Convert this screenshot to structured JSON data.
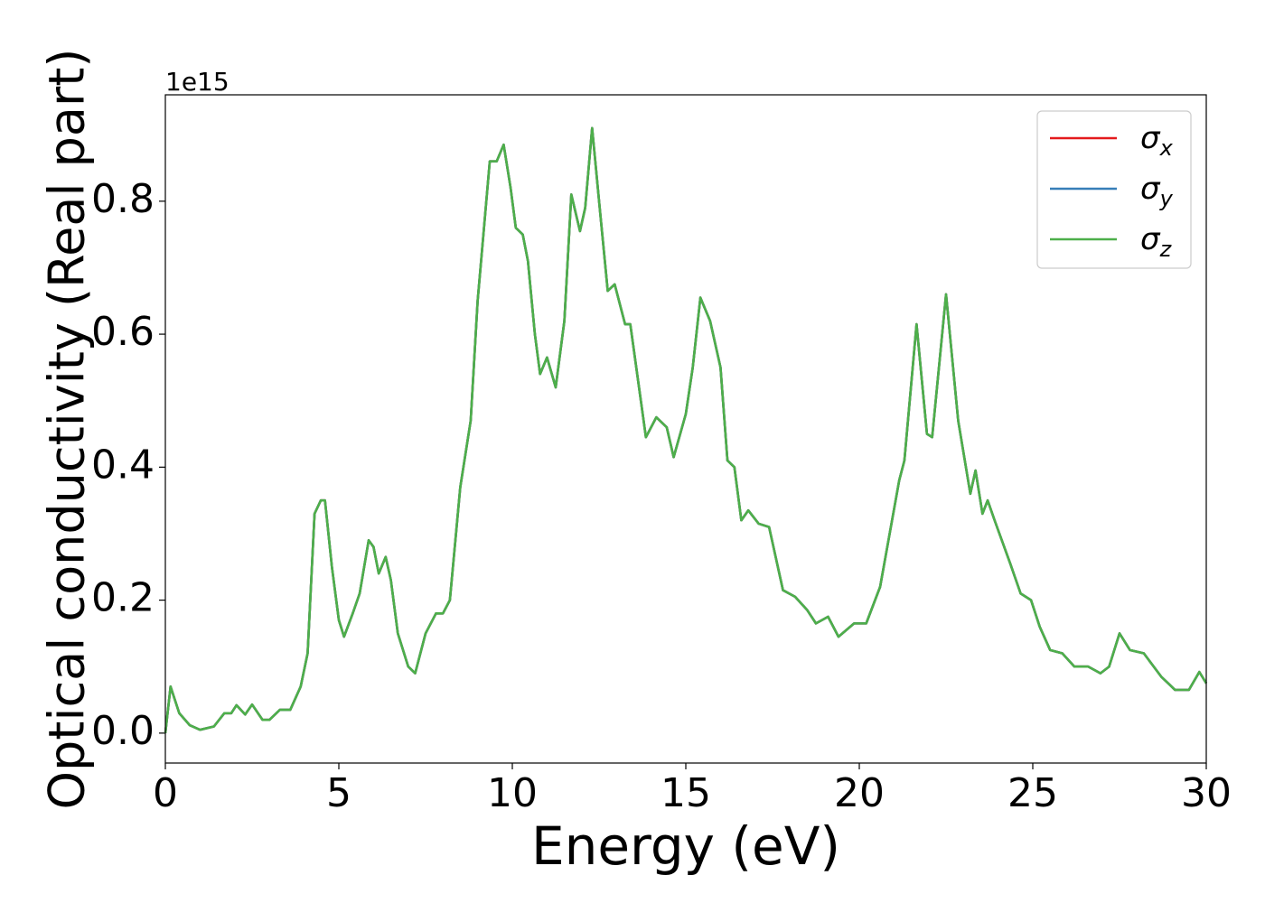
{
  "chart_data": {
    "type": "line",
    "xlabel": "Energy (eV)",
    "ylabel": "Optical conductivity (Real part)",
    "offset_label": "1e15",
    "xlim": [
      0,
      30
    ],
    "ylim": [
      -0.045,
      0.96
    ],
    "xticks": [
      0,
      5,
      10,
      15,
      20,
      25,
      30
    ],
    "yticks": [
      {
        "value": 0,
        "label": "0.0"
      },
      0.2,
      0.4,
      0.6,
      0.8
    ],
    "legend": "upper right",
    "x": [
      0,
      0.15,
      0.4,
      0.7,
      1.0,
      1.4,
      1.7,
      1.9,
      2.05,
      2.3,
      2.5,
      2.8,
      3.0,
      3.3,
      3.6,
      3.9,
      4.1,
      4.3,
      4.48,
      4.6,
      4.8,
      5.0,
      5.15,
      5.4,
      5.6,
      5.86,
      6.0,
      6.15,
      6.35,
      6.5,
      6.7,
      7.0,
      7.2,
      7.5,
      7.8,
      8.0,
      8.2,
      8.5,
      8.8,
      9.0,
      9.35,
      9.55,
      9.75,
      9.95,
      10.1,
      10.3,
      10.45,
      10.65,
      10.8,
      11.0,
      11.25,
      11.5,
      11.7,
      11.95,
      12.1,
      12.3,
      12.5,
      12.75,
      12.95,
      13.25,
      13.4,
      13.85,
      14.15,
      14.45,
      14.65,
      15.0,
      15.2,
      15.42,
      15.7,
      16.0,
      16.2,
      16.4,
      16.6,
      16.8,
      17.1,
      17.4,
      17.8,
      18.15,
      18.5,
      18.75,
      19.1,
      19.4,
      19.85,
      20.2,
      20.6,
      21.15,
      21.3,
      21.65,
      21.95,
      22.1,
      22.5,
      22.85,
      23.2,
      23.35,
      23.55,
      23.7,
      23.9,
      24.35,
      24.65,
      24.95,
      25.2,
      25.5,
      25.85,
      26.2,
      26.6,
      26.95,
      27.2,
      27.5,
      27.8,
      28.2,
      28.7,
      29.1,
      29.5,
      29.8,
      30
    ],
    "series": [
      {
        "name": "σx",
        "color": "#e41a1c",
        "values": [
          0,
          0.07,
          0.03,
          0.012,
          0.005,
          0.01,
          0.03,
          0.03,
          0.042,
          0.028,
          0.043,
          0.02,
          0.02,
          0.035,
          0.035,
          0.07,
          0.12,
          0.33,
          0.35,
          0.35,
          0.25,
          0.17,
          0.145,
          0.18,
          0.21,
          0.29,
          0.28,
          0.24,
          0.265,
          0.23,
          0.15,
          0.1,
          0.09,
          0.15,
          0.18,
          0.18,
          0.2,
          0.37,
          0.47,
          0.65,
          0.86,
          0.86,
          0.885,
          0.82,
          0.76,
          0.75,
          0.71,
          0.6,
          0.54,
          0.565,
          0.52,
          0.62,
          0.81,
          0.755,
          0.79,
          0.91,
          0.8,
          0.665,
          0.675,
          0.615,
          0.615,
          0.445,
          0.475,
          0.46,
          0.415,
          0.48,
          0.55,
          0.655,
          0.62,
          0.55,
          0.41,
          0.4,
          0.32,
          0.335,
          0.315,
          0.31,
          0.215,
          0.205,
          0.185,
          0.165,
          0.175,
          0.145,
          0.165,
          0.165,
          0.22,
          0.38,
          0.41,
          0.615,
          0.45,
          0.445,
          0.66,
          0.47,
          0.36,
          0.395,
          0.33,
          0.35,
          0.32,
          0.255,
          0.21,
          0.2,
          0.16,
          0.125,
          0.12,
          0.1,
          0.1,
          0.09,
          0.1,
          0.15,
          0.125,
          0.12,
          0.085,
          0.065,
          0.065,
          0.092,
          0.075
        ]
      },
      {
        "name": "σy",
        "color": "#377eb8",
        "values": [
          0,
          0.07,
          0.03,
          0.012,
          0.005,
          0.01,
          0.03,
          0.03,
          0.042,
          0.028,
          0.043,
          0.02,
          0.02,
          0.035,
          0.035,
          0.07,
          0.12,
          0.33,
          0.35,
          0.35,
          0.25,
          0.17,
          0.145,
          0.18,
          0.21,
          0.29,
          0.28,
          0.24,
          0.265,
          0.23,
          0.15,
          0.1,
          0.09,
          0.15,
          0.18,
          0.18,
          0.2,
          0.37,
          0.47,
          0.65,
          0.86,
          0.86,
          0.885,
          0.82,
          0.76,
          0.75,
          0.71,
          0.6,
          0.54,
          0.565,
          0.52,
          0.62,
          0.81,
          0.755,
          0.79,
          0.91,
          0.8,
          0.665,
          0.675,
          0.615,
          0.615,
          0.445,
          0.475,
          0.46,
          0.415,
          0.48,
          0.55,
          0.655,
          0.62,
          0.55,
          0.41,
          0.4,
          0.32,
          0.335,
          0.315,
          0.31,
          0.215,
          0.205,
          0.185,
          0.165,
          0.175,
          0.145,
          0.165,
          0.165,
          0.22,
          0.38,
          0.41,
          0.615,
          0.45,
          0.445,
          0.66,
          0.47,
          0.36,
          0.395,
          0.33,
          0.35,
          0.32,
          0.255,
          0.21,
          0.2,
          0.16,
          0.125,
          0.12,
          0.1,
          0.1,
          0.09,
          0.1,
          0.15,
          0.125,
          0.12,
          0.085,
          0.065,
          0.065,
          0.092,
          0.075
        ]
      },
      {
        "name": "σz",
        "color": "#4daf4a",
        "values": [
          0,
          0.07,
          0.03,
          0.012,
          0.005,
          0.01,
          0.03,
          0.03,
          0.042,
          0.028,
          0.043,
          0.02,
          0.02,
          0.035,
          0.035,
          0.07,
          0.12,
          0.33,
          0.35,
          0.35,
          0.25,
          0.17,
          0.145,
          0.18,
          0.21,
          0.29,
          0.28,
          0.24,
          0.265,
          0.23,
          0.15,
          0.1,
          0.09,
          0.15,
          0.18,
          0.18,
          0.2,
          0.37,
          0.47,
          0.65,
          0.86,
          0.86,
          0.885,
          0.82,
          0.76,
          0.75,
          0.71,
          0.6,
          0.54,
          0.565,
          0.52,
          0.62,
          0.81,
          0.755,
          0.79,
          0.91,
          0.8,
          0.665,
          0.675,
          0.615,
          0.615,
          0.445,
          0.475,
          0.46,
          0.415,
          0.48,
          0.55,
          0.655,
          0.62,
          0.55,
          0.41,
          0.4,
          0.32,
          0.335,
          0.315,
          0.31,
          0.215,
          0.205,
          0.185,
          0.165,
          0.175,
          0.145,
          0.165,
          0.165,
          0.22,
          0.38,
          0.41,
          0.615,
          0.45,
          0.445,
          0.66,
          0.47,
          0.36,
          0.395,
          0.33,
          0.35,
          0.32,
          0.255,
          0.21,
          0.2,
          0.16,
          0.125,
          0.12,
          0.1,
          0.1,
          0.09,
          0.1,
          0.15,
          0.125,
          0.12,
          0.085,
          0.065,
          0.065,
          0.092,
          0.075
        ]
      }
    ]
  }
}
